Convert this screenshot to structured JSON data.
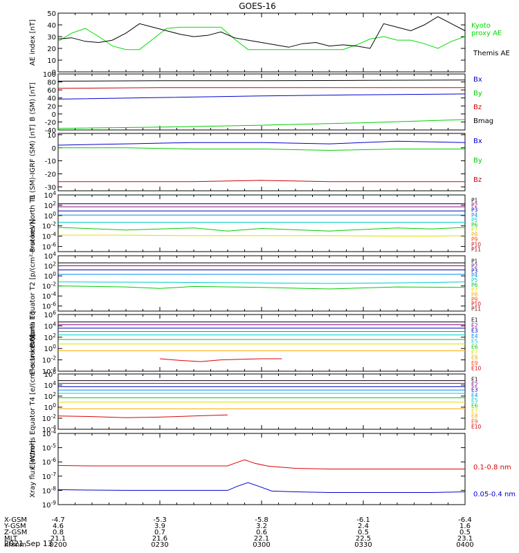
{
  "title": "GOES-16",
  "date_label": "2021 Sep 13",
  "chart_data": [
    {
      "type": "line",
      "ylabel": "AE index [nT]",
      "yscale": "linear",
      "ylim": [
        0,
        50
      ],
      "yticks": [
        0,
        10,
        20,
        30,
        40,
        50
      ],
      "ytick_labels": [
        "0",
        "10",
        "20",
        "30",
        "40",
        "50"
      ],
      "xlim": [
        0,
        120
      ],
      "series": [
        {
          "name": "Kyoto proxy AE",
          "color": "#00dd00",
          "legend_lines": [
            "Kyoto",
            "proxy AE"
          ],
          "x": [
            0,
            4,
            8,
            12,
            16,
            20,
            24,
            28,
            32,
            36,
            40,
            44,
            48,
            52,
            56,
            60,
            64,
            68,
            72,
            76,
            80,
            84,
            88,
            92,
            96,
            100,
            104,
            108,
            112,
            116,
            120
          ],
          "y": [
            26,
            33,
            37,
            30,
            22,
            19,
            19,
            28,
            37,
            38,
            38,
            38,
            38,
            28,
            19,
            19,
            19,
            19,
            19,
            19,
            19,
            19,
            23,
            28,
            30,
            27,
            27,
            24,
            20,
            26,
            30
          ]
        },
        {
          "name": "Themis AE",
          "color": "#000000",
          "legend_lines": [
            "Themis AE"
          ],
          "x": [
            0,
            4,
            8,
            12,
            16,
            20,
            24,
            28,
            32,
            36,
            40,
            44,
            48,
            52,
            56,
            60,
            64,
            68,
            72,
            76,
            80,
            84,
            88,
            92,
            96,
            100,
            104,
            108,
            112,
            116,
            120
          ],
          "y": [
            28,
            29,
            26,
            25,
            27,
            33,
            41,
            38,
            35,
            32,
            30,
            31,
            34,
            29,
            27,
            25,
            23,
            21,
            24,
            25,
            22,
            23,
            22,
            20,
            41,
            38,
            35,
            40,
            47,
            41,
            35
          ]
        }
      ]
    },
    {
      "type": "line",
      "ylabel": "B (SM) [nT]",
      "yscale": "linear",
      "ylim": [
        -40,
        100
      ],
      "yticks": [
        -40,
        -20,
        0,
        20,
        40,
        60,
        80,
        100
      ],
      "ytick_labels": [
        "-40",
        "-20",
        "0",
        "20",
        "40",
        "60",
        "80",
        "100"
      ],
      "xlim": [
        0,
        120
      ],
      "series": [
        {
          "name": "Bx",
          "color": "#0000cc",
          "x": [
            0,
            30,
            60,
            90,
            120
          ],
          "y": [
            37,
            41,
            45,
            48,
            50
          ]
        },
        {
          "name": "By",
          "color": "#00cc00",
          "x": [
            0,
            30,
            60,
            90,
            120
          ],
          "y": [
            -36,
            -33,
            -28,
            -22,
            -14
          ]
        },
        {
          "name": "Bz",
          "color": "#cc0000",
          "x": [
            0,
            30,
            60,
            90,
            120
          ],
          "y": [
            64,
            66,
            66,
            66,
            66
          ]
        },
        {
          "name": "Bmag",
          "color": "#000000",
          "x": [
            0,
            30,
            60,
            90,
            120
          ],
          "y": [
            82,
            83,
            83,
            84,
            85
          ]
        }
      ]
    },
    {
      "type": "line",
      "ylabel": "B (SM)-IGRF (SM) [nT]",
      "yscale": "linear",
      "ylim": [
        -33,
        11
      ],
      "yticks": [
        -30,
        -20,
        -10,
        0,
        10
      ],
      "ytick_labels": [
        "-30",
        "-20",
        "-10",
        "0",
        "10"
      ],
      "xlim": [
        0,
        120
      ],
      "series": [
        {
          "name": "Bx",
          "color": "#0000cc",
          "x": [
            0,
            20,
            40,
            60,
            80,
            100,
            120
          ],
          "y": [
            2,
            3,
            4,
            4,
            3,
            5,
            4
          ]
        },
        {
          "name": "By",
          "color": "#00cc00",
          "x": [
            0,
            20,
            40,
            60,
            80,
            100,
            120
          ],
          "y": [
            0,
            0,
            -1,
            -1,
            -2,
            -1,
            -1
          ]
        },
        {
          "name": "Bz",
          "color": "#cc0000",
          "x": [
            0,
            20,
            40,
            60,
            80,
            100,
            120
          ],
          "y": [
            -26,
            -26,
            -26,
            -25,
            -26,
            -26,
            -26
          ]
        }
      ]
    },
    {
      "type": "line",
      "ylabel": "Protons North T1",
      "yscale": "log",
      "ylim": [
        -7,
        4
      ],
      "yticks": [
        -6,
        -4,
        -2,
        0,
        2,
        4
      ],
      "xlim": [
        0,
        120
      ],
      "series": [
        {
          "name": "P1",
          "color": "#000000",
          "x": [
            0,
            120
          ],
          "y": [
            2.3,
            2.3
          ]
        },
        {
          "name": "P2",
          "color": "#880088",
          "x": [
            0,
            120
          ],
          "y": [
            1.7,
            1.7
          ]
        },
        {
          "name": "P3",
          "color": "#0000aa",
          "x": [
            0,
            120
          ],
          "y": [
            0.9,
            0.9
          ]
        },
        {
          "name": "P4",
          "color": "#0088ee",
          "x": [
            0,
            120
          ],
          "y": [
            0.1,
            0.1
          ]
        },
        {
          "name": "P5",
          "color": "#00cccc",
          "x": [
            0,
            120
          ],
          "y": [
            -1.3,
            -1.3
          ]
        },
        {
          "name": "P6",
          "color": "#00cc00",
          "x": [
            0,
            20,
            40,
            50,
            60,
            80,
            100,
            110,
            120
          ],
          "y": [
            -2.3,
            -2.8,
            -2.4,
            -3.0,
            -2.5,
            -3.0,
            -2.4,
            -2.6,
            -2.3
          ]
        },
        {
          "name": "P7",
          "color": "#dddd00",
          "x": [
            0,
            20,
            40,
            50,
            60,
            80,
            100,
            110,
            120
          ],
          "y": [
            -3.8,
            -3.8,
            -3.9,
            -3.9,
            -3.9,
            -3.9,
            -4.0,
            -4.0,
            -3.9
          ]
        },
        {
          "name": "P8",
          "color": "#ffaa00",
          "x": [],
          "y": []
        },
        {
          "name": "P9",
          "color": "#ff4400",
          "x": [],
          "y": []
        },
        {
          "name": "P10",
          "color": "#dd0000",
          "x": [],
          "y": []
        },
        {
          "name": "P11",
          "color": "#880000",
          "x": [],
          "y": []
        }
      ]
    },
    {
      "type": "line",
      "ylabel": "Protons Equator T2 [p/(cm²-s-sr-keV)]",
      "yscale": "log",
      "ylim": [
        -7,
        4
      ],
      "yticks": [
        -6,
        -4,
        -2,
        0,
        2,
        4
      ],
      "xlim": [
        0,
        120
      ],
      "series": [
        {
          "name": "P1",
          "color": "#000000",
          "x": [
            0,
            120
          ],
          "y": [
            2.6,
            2.6
          ]
        },
        {
          "name": "P2",
          "color": "#880088",
          "x": [
            0,
            120
          ],
          "y": [
            2.0,
            2.0
          ]
        },
        {
          "name": "P3",
          "color": "#0000aa",
          "x": [
            0,
            120
          ],
          "y": [
            1.2,
            1.2
          ]
        },
        {
          "name": "P4",
          "color": "#0088ee",
          "x": [
            0,
            120
          ],
          "y": [
            0.3,
            0.3
          ]
        },
        {
          "name": "P5",
          "color": "#00cccc",
          "x": [
            0,
            40,
            60,
            80,
            100,
            120
          ],
          "y": [
            -1.2,
            -1.3,
            -1.4,
            -1.5,
            -1.4,
            -1.2
          ]
        },
        {
          "name": "P6",
          "color": "#00cc00",
          "x": [
            0,
            20,
            30,
            40,
            60,
            80,
            100,
            120
          ],
          "y": [
            -2.0,
            -2.2,
            -2.5,
            -2.1,
            -2.3,
            -2.6,
            -2.2,
            -2.3
          ]
        },
        {
          "name": "P7",
          "color": "#dddd00",
          "x": [],
          "y": []
        },
        {
          "name": "P8",
          "color": "#ffaa00",
          "x": [],
          "y": []
        },
        {
          "name": "P9",
          "color": "#ff4400",
          "x": [],
          "y": []
        },
        {
          "name": "P10",
          "color": "#dd0000",
          "x": [],
          "y": []
        },
        {
          "name": "P11",
          "color": "#880000",
          "x": [],
          "y": []
        }
      ]
    },
    {
      "type": "line",
      "ylabel": "Electrons North T3",
      "yscale": "log",
      "ylim": [
        -4,
        6
      ],
      "yticks": [
        -4,
        -2,
        0,
        2,
        4,
        6
      ],
      "xlim": [
        0,
        120
      ],
      "series": [
        {
          "name": "E1",
          "color": "#000000",
          "x": [
            0,
            120
          ],
          "y": [
            4.7,
            4.7
          ]
        },
        {
          "name": "E2",
          "color": "#880088",
          "x": [
            0,
            120
          ],
          "y": [
            4.2,
            4.2
          ]
        },
        {
          "name": "E3",
          "color": "#0000aa",
          "x": [
            0,
            120
          ],
          "y": [
            3.6,
            3.6
          ]
        },
        {
          "name": "E4",
          "color": "#0088ee",
          "x": [
            0,
            120
          ],
          "y": [
            3.0,
            3.0
          ]
        },
        {
          "name": "E5",
          "color": "#00cccc",
          "x": [
            0,
            120
          ],
          "y": [
            2.4,
            2.4
          ]
        },
        {
          "name": "E6",
          "color": "#00cc00",
          "x": [
            0,
            120
          ],
          "y": [
            1.6,
            1.6
          ]
        },
        {
          "name": "E7",
          "color": "#dddd00",
          "x": [
            0,
            120
          ],
          "y": [
            0.8,
            0.8
          ]
        },
        {
          "name": "E8",
          "color": "#ffaa00",
          "x": [
            0,
            120
          ],
          "y": [
            -0.4,
            -0.4
          ]
        },
        {
          "name": "E9",
          "color": "#ff4400",
          "x": [],
          "y": []
        },
        {
          "name": "E10",
          "color": "#dd0000",
          "x": [
            30,
            36,
            42,
            48,
            54,
            60,
            66
          ],
          "y": [
            -1.8,
            -2.1,
            -2.3,
            -2.0,
            -1.9,
            -1.8,
            -1.8
          ]
        }
      ]
    },
    {
      "type": "line",
      "ylabel": "Electrons Equator T4 [e/(cm²-s-sr-keV)]",
      "yscale": "log",
      "ylim": [
        -4,
        6
      ],
      "yticks": [
        -4,
        -2,
        0,
        2,
        4,
        6
      ],
      "xlim": [
        0,
        120
      ],
      "series": [
        {
          "name": "E1",
          "color": "#000000",
          "x": [
            0,
            120
          ],
          "y": [
            4.8,
            4.8
          ]
        },
        {
          "name": "E2",
          "color": "#880088",
          "x": [
            0,
            120
          ],
          "y": [
            4.3,
            4.3
          ]
        },
        {
          "name": "E3",
          "color": "#0000aa",
          "x": [
            0,
            120
          ],
          "y": [
            3.7,
            3.7
          ]
        },
        {
          "name": "E4",
          "color": "#0088ee",
          "x": [
            0,
            120
          ],
          "y": [
            3.1,
            3.1
          ]
        },
        {
          "name": "E5",
          "color": "#00cccc",
          "x": [
            0,
            120
          ],
          "y": [
            2.5,
            2.5
          ]
        },
        {
          "name": "E6",
          "color": "#00cc00",
          "x": [
            0,
            120
          ],
          "y": [
            1.7,
            1.7
          ]
        },
        {
          "name": "E7",
          "color": "#dddd00",
          "x": [
            0,
            120
          ],
          "y": [
            0.9,
            0.9
          ]
        },
        {
          "name": "E8",
          "color": "#ffaa00",
          "x": [
            0,
            120
          ],
          "y": [
            -0.3,
            -0.3
          ]
        },
        {
          "name": "E9",
          "color": "#ff4400",
          "x": [],
          "y": []
        },
        {
          "name": "E10",
          "color": "#dd0000",
          "x": [
            0,
            10,
            20,
            30,
            40,
            50
          ],
          "y": [
            -1.6,
            -1.7,
            -1.9,
            -1.8,
            -1.6,
            -1.4
          ]
        }
      ]
    },
    {
      "type": "line",
      "ylabel": "Xray flux [W/m²]",
      "yscale": "log",
      "ylim": [
        -9,
        -4
      ],
      "yticks": [
        -9,
        -8,
        -7,
        -6,
        -5,
        -4
      ],
      "xlim": [
        0,
        120
      ],
      "series": [
        {
          "name": "0.1-0.8 nm",
          "color": "#dd0000",
          "x": [
            0,
            10,
            20,
            30,
            40,
            50,
            52,
            55,
            58,
            62,
            70,
            80,
            90,
            100,
            110,
            120
          ],
          "y": [
            -6.25,
            -6.28,
            -6.28,
            -6.28,
            -6.28,
            -6.28,
            -6.1,
            -5.85,
            -6.1,
            -6.3,
            -6.45,
            -6.5,
            -6.5,
            -6.5,
            -6.5,
            -6.5
          ]
        },
        {
          "name": "0.05-0.4 nm",
          "color": "#0000cc",
          "x": [
            0,
            10,
            20,
            30,
            40,
            50,
            53,
            56,
            59,
            63,
            70,
            80,
            90,
            100,
            110,
            120
          ],
          "y": [
            -7.95,
            -7.98,
            -8.0,
            -8.0,
            -8.0,
            -8.0,
            -7.7,
            -7.45,
            -7.7,
            -8.05,
            -8.1,
            -8.15,
            -8.15,
            -8.15,
            -8.15,
            -8.1
          ]
        }
      ]
    }
  ],
  "x_axis": {
    "rows": [
      {
        "label": "X-GSM",
        "values": [
          "-4.7",
          "-5.3",
          "-5.8",
          "-6.1",
          "-6.4"
        ]
      },
      {
        "label": "Y-GSM",
        "values": [
          "4.6",
          "3.9",
          "3.2",
          "2.4",
          "1.6"
        ]
      },
      {
        "label": "Z-GSM",
        "values": [
          "0.8",
          "0.7",
          "0.6",
          "0.5",
          "0.5"
        ]
      },
      {
        "label": "MLT",
        "values": [
          "21.1",
          "21.6",
          "22.1",
          "22.5",
          "23.1"
        ]
      },
      {
        "label": "hhmm",
        "values": [
          "0200",
          "0230",
          "0300",
          "0330",
          "0400"
        ]
      }
    ]
  }
}
